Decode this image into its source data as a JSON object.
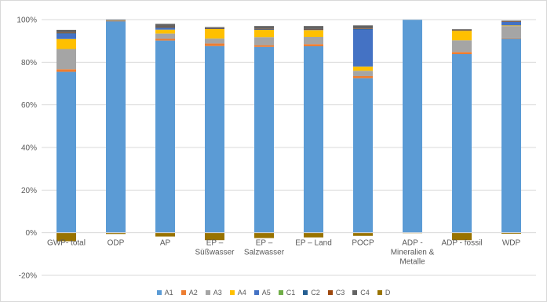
{
  "chart_data": {
    "type": "bar",
    "stacked": true,
    "categories": [
      [
        "GWP- total"
      ],
      [
        "ODP"
      ],
      [
        "AP"
      ],
      [
        "EP –",
        "Süßwasser"
      ],
      [
        "EP –",
        "Salzwasser"
      ],
      [
        "EP – Land"
      ],
      [
        "POCP"
      ],
      [
        "ADP -",
        "Mineralien &",
        "Metalle"
      ],
      [
        "ADP - fossil"
      ],
      [
        "WDP"
      ]
    ],
    "y_ticks": [
      "100%",
      "80%",
      "60%",
      "40%",
      "20%",
      "0%",
      "-20%"
    ],
    "ylim": [
      -20,
      100
    ],
    "y_unit": "%",
    "grid": true,
    "legend_position": "bottom",
    "series": [
      {
        "name": "A1",
        "color": "#5B9BD5",
        "values": [
          75.5,
          99.3,
          90.2,
          87.6,
          87.2,
          87.5,
          72.5,
          99.9,
          83.8,
          91.0
        ]
      },
      {
        "name": "A2",
        "color": "#ED7D31",
        "values": [
          1.2,
          0.1,
          0.8,
          1.2,
          0.8,
          1.0,
          1.0,
          0.0,
          1.0,
          0.2
        ]
      },
      {
        "name": "A3",
        "color": "#A5A5A5",
        "values": [
          9.5,
          0.2,
          2.5,
          2.3,
          3.8,
          3.4,
          2.5,
          0.0,
          5.5,
          5.8
        ]
      },
      {
        "name": "A4",
        "color": "#FFC000",
        "values": [
          4.7,
          0.2,
          1.8,
          4.5,
          3.4,
          3.2,
          2.0,
          0.0,
          4.5,
          0.3
        ]
      },
      {
        "name": "A5",
        "color": "#4472C4",
        "values": [
          2.5,
          0.1,
          0.8,
          0.2,
          0.3,
          0.3,
          17.4,
          0.0,
          0.2,
          1.6
        ]
      },
      {
        "name": "C1",
        "color": "#70AD47",
        "values": [
          0.0,
          0.0,
          0.0,
          0.0,
          0.0,
          0.0,
          0.0,
          0.0,
          0.0,
          0.0
        ]
      },
      {
        "name": "C2",
        "color": "#255E91",
        "values": [
          0.3,
          0.0,
          0.2,
          0.1,
          0.1,
          0.1,
          0.3,
          0.0,
          0.1,
          0.2
        ]
      },
      {
        "name": "C3",
        "color": "#9E480E",
        "values": [
          0.2,
          0.0,
          0.2,
          0.1,
          0.1,
          0.1,
          0.2,
          0.0,
          0.1,
          0.1
        ]
      },
      {
        "name": "C4",
        "color": "#636363",
        "values": [
          1.3,
          0.1,
          1.5,
          0.5,
          1.3,
          1.4,
          1.4,
          0.0,
          0.3,
          0.3
        ]
      },
      {
        "name": "D",
        "color": "#997300",
        "values": [
          -4.0,
          -0.6,
          -1.8,
          -3.5,
          -2.5,
          -2.2,
          -1.5,
          -0.1,
          -3.5,
          -0.5
        ]
      }
    ]
  }
}
